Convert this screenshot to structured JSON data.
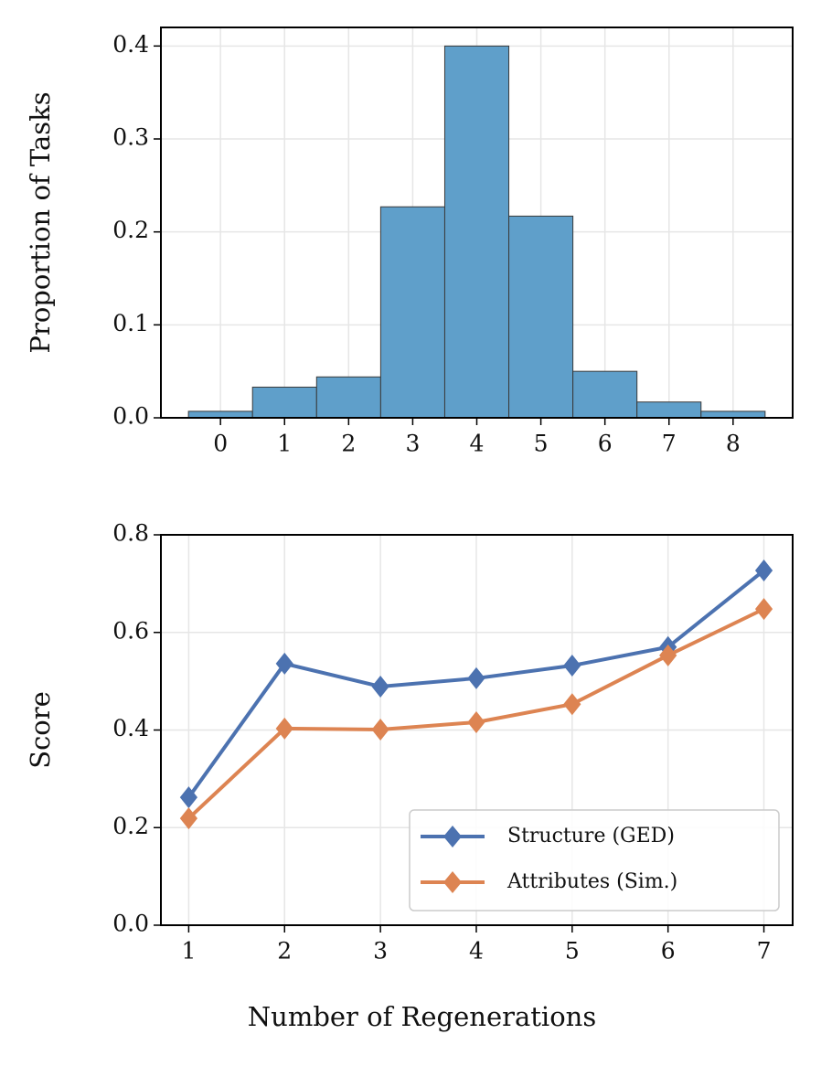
{
  "chart_data": [
    {
      "type": "bar",
      "ylabel": "Proportion of Tasks",
      "x": [
        0,
        1,
        2,
        3,
        4,
        5,
        6,
        7,
        8
      ],
      "values": [
        0.007,
        0.033,
        0.044,
        0.227,
        0.4,
        0.217,
        0.05,
        0.017,
        0.007
      ],
      "color": "#5f9fca",
      "edgecolor": "#3a3a3a",
      "xlim": [
        -0.93,
        8.93
      ],
      "ylim": [
        0,
        0.42
      ],
      "xticks": [
        0,
        1,
        2,
        3,
        4,
        5,
        6,
        7,
        8
      ],
      "yticks": [
        {
          "value": 0,
          "label": "0.0"
        },
        0.1,
        0.2,
        0.3,
        0.4
      ],
      "grid": true
    },
    {
      "type": "line",
      "xlabel": "Number of Regenerations",
      "ylabel": "Score",
      "x": [
        1,
        2,
        3,
        4,
        5,
        6,
        7
      ],
      "series": [
        {
          "name": "Structure (GED)",
          "color": "#4c72b0",
          "values": [
            0.262,
            0.536,
            0.489,
            0.506,
            0.532,
            0.57,
            0.727
          ]
        },
        {
          "name": "Attributes (Sim.)",
          "color": "#dd8452",
          "values": [
            0.219,
            0.403,
            0.401,
            0.416,
            0.453,
            0.553,
            0.648
          ]
        }
      ],
      "xlim": [
        0.71,
        7.3
      ],
      "ylim": [
        0,
        0.8
      ],
      "xticks": [
        1,
        2,
        3,
        4,
        5,
        6,
        7
      ],
      "yticks": [
        {
          "value": 0,
          "label": "0.0"
        },
        0.2,
        0.4,
        0.6,
        0.8
      ],
      "grid": true,
      "legend": "lower right"
    }
  ]
}
